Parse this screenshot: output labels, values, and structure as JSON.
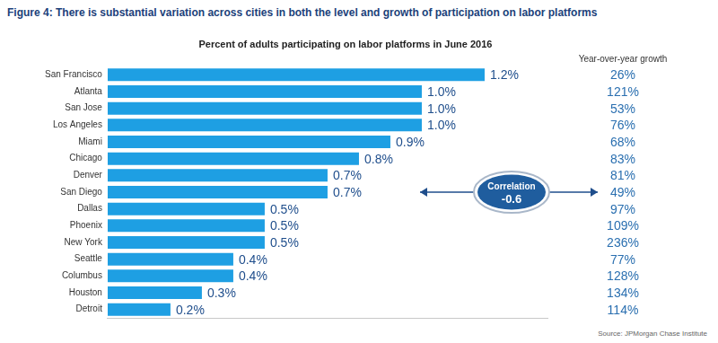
{
  "chart_data": {
    "type": "bar",
    "orientation": "horizontal",
    "title": "Figure 4: There is substantial variation across cities in both the level and growth of participation on labor platforms",
    "subtitle": "Percent of adults participating on labor platforms in June 2016",
    "categories": [
      "San Francisco",
      "Atlanta",
      "San Jose",
      "Los Angeles",
      "Miami",
      "Chicago",
      "Denver",
      "San Diego",
      "Dallas",
      "Phoenix",
      "New York",
      "Seattle",
      "Columbus",
      "Houston",
      "Detroit"
    ],
    "values": [
      1.2,
      1.0,
      1.0,
      1.0,
      0.9,
      0.8,
      0.7,
      0.7,
      0.5,
      0.5,
      0.5,
      0.4,
      0.4,
      0.3,
      0.2
    ],
    "value_labels": [
      "1.2%",
      "1.0%",
      "1.0%",
      "1.0%",
      "0.9%",
      "0.8%",
      "0.7%",
      "0.7%",
      "0.5%",
      "0.5%",
      "0.5%",
      "0.4%",
      "0.4%",
      "0.3%",
      "0.2%"
    ],
    "color": "#1e9fe3",
    "xlim": [
      0,
      1.4
    ],
    "data_labels": true,
    "grid": false,
    "tick_labels": "y",
    "growth": {
      "title": "Year-over-year growth",
      "values": [
        26,
        121,
        53,
        76,
        68,
        83,
        81,
        49,
        97,
        109,
        236,
        77,
        128,
        134,
        114
      ],
      "value_labels": [
        "26%",
        "121%",
        "53%",
        "76%",
        "68%",
        "83%",
        "81%",
        "49%",
        "97%",
        "109%",
        "236%",
        "77%",
        "128%",
        "134%",
        "114%"
      ]
    },
    "correlation": {
      "label": "Correlation",
      "value": -0.6
    },
    "source": "Source: JPMorgan Chase Institute"
  }
}
